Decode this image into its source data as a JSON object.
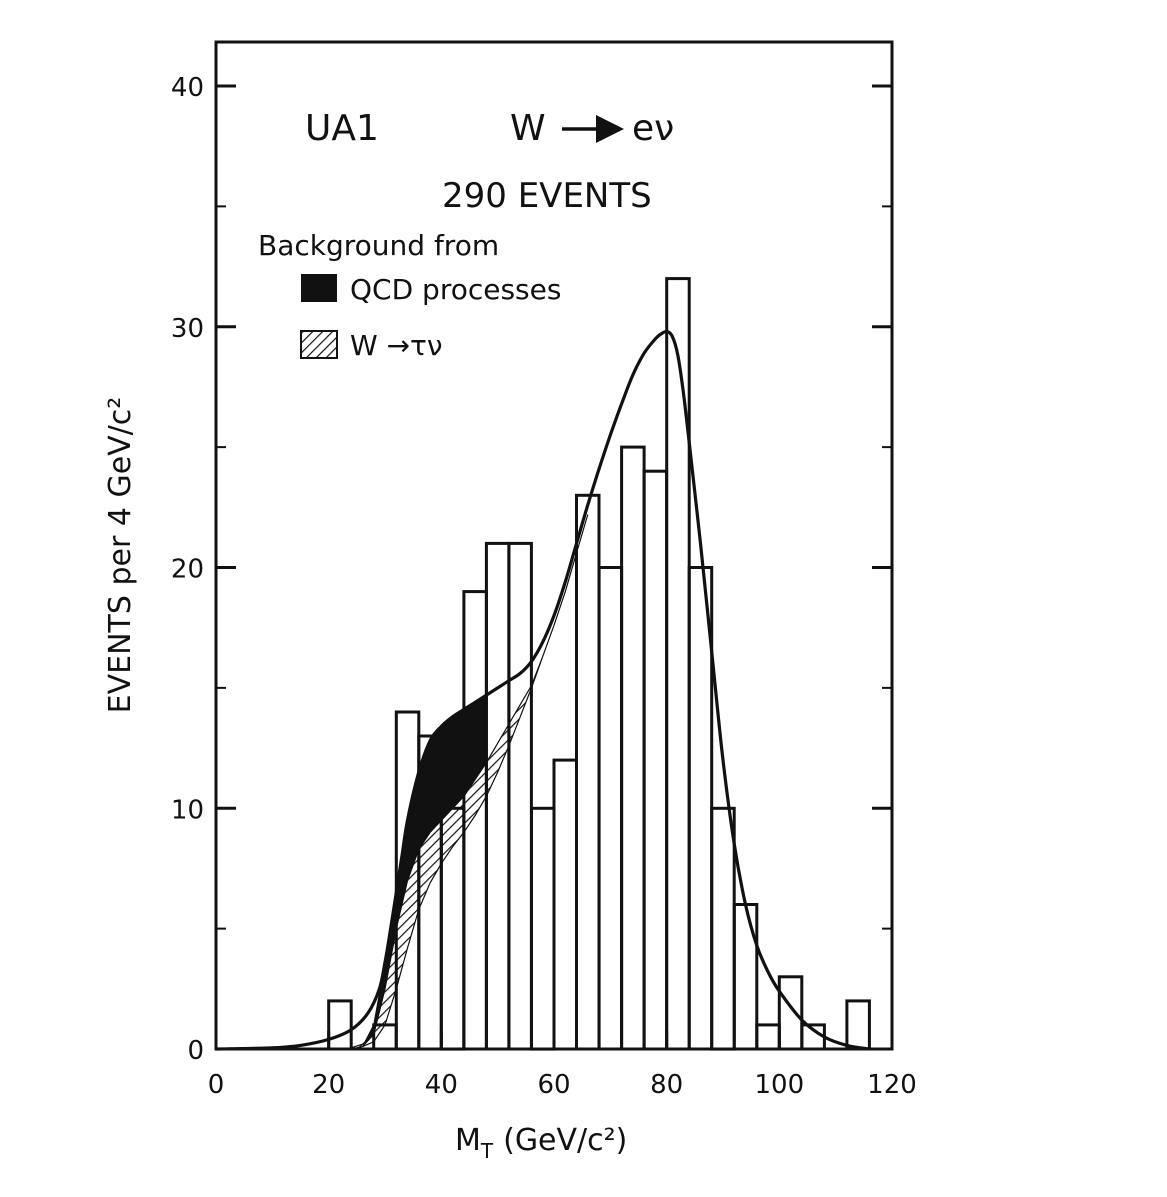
{
  "chart_data": {
    "type": "bar",
    "title": "UA1",
    "process": {
      "lhs": "W",
      "rhs": "eν"
    },
    "subtitle": "290 EVENTS",
    "xlabel": "M",
    "xlabel_subscript": "T",
    "xlabel_units": "(GeV/c²)",
    "ylabel": "EVENTS per 4 GeV/c²",
    "xlim": [
      0,
      120
    ],
    "ylim": [
      0,
      40
    ],
    "x_ticks": [
      0,
      20,
      40,
      60,
      80,
      100,
      120
    ],
    "y_ticks": [
      0,
      10,
      20,
      30,
      40
    ],
    "legend": {
      "header": "Background from",
      "items": [
        {
          "label": "QCD processes",
          "style": "solid-black"
        },
        {
          "label": "W →τν",
          "style": "hatched"
        }
      ]
    },
    "histogram": {
      "bin_width": 4,
      "bin_lower_edges": [
        20,
        24,
        28,
        32,
        36,
        40,
        44,
        48,
        52,
        56,
        60,
        64,
        68,
        72,
        76,
        80,
        84,
        88,
        92,
        96,
        100,
        104,
        108,
        112,
        116
      ],
      "counts": [
        2,
        0,
        1,
        14,
        13,
        10,
        19,
        21,
        21,
        10,
        12,
        23,
        20,
        25,
        24,
        32,
        20,
        10,
        6,
        1,
        3,
        1,
        0,
        2,
        0
      ]
    },
    "fit_curve": {
      "x": [
        0,
        10,
        15,
        20,
        24,
        27,
        29,
        30,
        31,
        32,
        33,
        34,
        36,
        38,
        40,
        42,
        44,
        46,
        48,
        50,
        52,
        54,
        56,
        58,
        60,
        62,
        64,
        66,
        68,
        70,
        72,
        74,
        76,
        78,
        79,
        80,
        81,
        82,
        83,
        84,
        86,
        88,
        90,
        92,
        94,
        96,
        98,
        100,
        104,
        108,
        112,
        116
      ],
      "y": [
        0,
        0.05,
        0.15,
        0.4,
        0.8,
        1.5,
        2.5,
        3.6,
        5.0,
        6.5,
        8.0,
        9.5,
        11.5,
        12.8,
        13.4,
        13.8,
        14.1,
        14.4,
        14.7,
        15.0,
        15.3,
        15.6,
        16.1,
        16.9,
        18.0,
        19.4,
        21.0,
        22.6,
        24.1,
        25.5,
        26.8,
        28.0,
        28.9,
        29.5,
        29.7,
        29.8,
        29.6,
        28.8,
        27.2,
        25.2,
        21.0,
        16.5,
        12.0,
        8.5,
        6.0,
        4.3,
        3.2,
        2.4,
        1.2,
        0.5,
        0.15,
        0
      ]
    },
    "qcd_band": {
      "x": [
        26,
        28,
        30,
        32,
        34,
        36,
        38,
        40,
        42,
        44,
        46,
        48
      ],
      "upper": [
        0.1,
        1.0,
        3.6,
        6.5,
        9.5,
        11.5,
        12.8,
        13.4,
        13.8,
        14.1,
        14.4,
        14.7
      ],
      "lower": [
        0.1,
        0.6,
        2.5,
        5.0,
        7.0,
        8.3,
        9.0,
        9.5,
        10.0,
        10.5,
        11.2,
        11.9
      ]
    },
    "wtau_band": {
      "x": [
        24,
        26,
        28,
        30,
        32,
        34,
        36,
        38,
        40,
        42,
        44,
        46,
        48,
        50,
        52,
        54,
        56,
        58,
        60,
        62,
        64,
        66
      ],
      "upper": [
        0.05,
        0.2,
        0.6,
        2.5,
        5.0,
        7.0,
        8.3,
        9.0,
        9.5,
        10.0,
        10.5,
        11.2,
        11.9,
        12.7,
        13.5,
        14.3,
        15.1,
        16.3,
        17.6,
        19.0,
        20.6,
        22.2
      ],
      "lower": [
        0.0,
        0.1,
        0.3,
        1.0,
        2.5,
        4.2,
        5.8,
        6.9,
        7.7,
        8.4,
        9.0,
        9.7,
        10.5,
        11.5,
        12.6,
        13.8,
        15.0,
        16.3,
        17.6,
        19.0,
        20.6,
        22.2
      ]
    }
  }
}
